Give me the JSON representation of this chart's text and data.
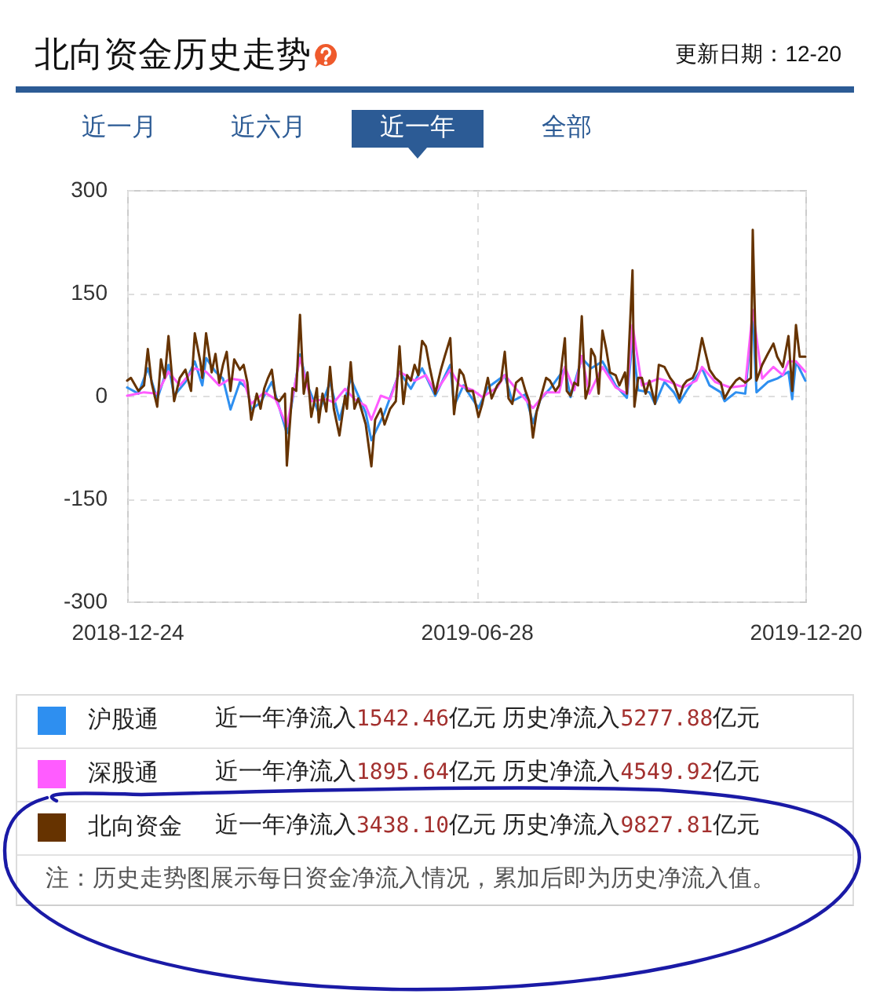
{
  "chart_data": {
    "type": "line",
    "title": "北向资金历史走势",
    "subtitle": "更新日期：12-20",
    "annotations": [
      "近一月",
      "近六月",
      "近一年",
      "全部",
      "近一年净流入1542.46亿元 历史净流入5277.88亿元",
      "近一年净流入1895.64亿元 历史净流入4549.92亿元",
      "近一年净流入3438.10亿元 历史净流入9827.81亿元",
      "注：历史走势图展示每日资金净流入情况，累加后即为历史净流入值。"
    ],
    "xlim": [
      "2018-12-24",
      "2019-12-20"
    ],
    "xticks": [
      "2018-12-24",
      "2019-06-28",
      "2019-12-20"
    ],
    "ylim": [
      -300,
      300
    ],
    "yticks": [
      300,
      150,
      0,
      -150,
      -300
    ],
    "grid": true,
    "legend": "bottom",
    "series": [
      {
        "name": "沪股通",
        "color": "#2e8ff0",
        "x": [
          "2018-12-24",
          "2018-12-30",
          "2019-01-04",
          "2019-01-09",
          "2019-01-15",
          "2019-01-18",
          "2019-01-24",
          "2019-01-29",
          "2019-02-02",
          "2019-02-04",
          "2019-02-09",
          "2019-02-13",
          "2019-02-17",
          "2019-02-22",
          "2019-02-26",
          "2019-02-28",
          "2019-03-05",
          "2019-03-11",
          "2019-03-19",
          "2019-03-26",
          "2019-03-30",
          "2019-04-05",
          "2019-04-11",
          "2019-04-16",
          "2019-04-22",
          "2019-04-30",
          "2019-05-03",
          "2019-05-10",
          "2019-05-18",
          "2019-05-24",
          "2019-05-30",
          "2019-06-06",
          "2019-06-14",
          "2019-06-16",
          "2019-06-21",
          "2019-06-29",
          "2019-07-04",
          "2019-07-13",
          "2019-07-17",
          "2019-07-24",
          "2019-07-28",
          "2019-08-01",
          "2019-08-06",
          "2019-08-14",
          "2019-08-17",
          "2019-08-23",
          "2019-08-28",
          "2019-09-03",
          "2019-09-10",
          "2019-09-16",
          "2019-09-19",
          "2019-09-22",
          "2019-09-28",
          "2019-10-01",
          "2019-10-06",
          "2019-10-11",
          "2019-10-14",
          "2019-10-18",
          "2019-10-26",
          "2019-10-30",
          "2019-11-05",
          "2019-11-07",
          "2019-11-13",
          "2019-11-18",
          "2019-11-22",
          "2019-11-24",
          "2019-11-30",
          "2019-12-05",
          "2019-12-11",
          "2019-12-13",
          "2019-12-15",
          "2019-12-20"
        ],
        "values": [
          12,
          3,
          40,
          -5,
          45,
          0,
          20,
          50,
          15,
          55,
          35,
          25,
          -20,
          20,
          10,
          -20,
          -10,
          20,
          -55,
          60,
          15,
          -25,
          20,
          -35,
          25,
          -25,
          -65,
          -25,
          35,
          10,
          40,
          0,
          45,
          -15,
          15,
          -18,
          12,
          30,
          -8,
          2,
          -40,
          -5,
          10,
          40,
          -2,
          55,
          40,
          50,
          15,
          -3,
          80,
          8,
          5,
          -12,
          20,
          5,
          -10,
          8,
          40,
          15,
          5,
          -8,
          5,
          3,
          117,
          5,
          20,
          25,
          35,
          -5,
          50,
          22
        ]
      },
      {
        "name": "深股通",
        "color": "#ff5cff",
        "x": [
          "2018-12-24",
          "2019-01-02",
          "2019-01-09",
          "2019-01-15",
          "2019-01-21",
          "2019-01-29",
          "2019-02-04",
          "2019-02-11",
          "2019-02-17",
          "2019-02-24",
          "2019-02-28",
          "2019-03-07",
          "2019-03-13",
          "2019-03-19",
          "2019-03-26",
          "2019-04-01",
          "2019-04-09",
          "2019-04-13",
          "2019-04-19",
          "2019-04-24",
          "2019-04-30",
          "2019-05-03",
          "2019-05-08",
          "2019-05-13",
          "2019-05-18",
          "2019-05-26",
          "2019-06-01",
          "2019-06-06",
          "2019-06-11",
          "2019-06-14",
          "2019-06-19",
          "2019-06-26",
          "2019-07-01",
          "2019-07-09",
          "2019-07-13",
          "2019-07-19",
          "2019-07-28",
          "2019-08-04",
          "2019-08-11",
          "2019-08-14",
          "2019-08-19",
          "2019-08-23",
          "2019-08-27",
          "2019-09-03",
          "2019-09-10",
          "2019-09-16",
          "2019-09-19",
          "2019-09-24",
          "2019-10-03",
          "2019-10-09",
          "2019-10-16",
          "2019-10-23",
          "2019-10-26",
          "2019-11-02",
          "2019-11-10",
          "2019-11-18",
          "2019-11-22",
          "2019-11-27",
          "2019-12-03",
          "2019-12-08",
          "2019-12-11",
          "2019-12-15",
          "2019-12-20"
        ],
        "values": [
          0,
          5,
          3,
          35,
          15,
          40,
          35,
          15,
          25,
          22,
          -12,
          5,
          -5,
          -45,
          55,
          -8,
          -5,
          -10,
          10,
          -5,
          -15,
          -35,
          0,
          -5,
          35,
          22,
          30,
          5,
          25,
          38,
          15,
          8,
          -2,
          12,
          30,
          10,
          -18,
          5,
          5,
          42,
          8,
          58,
          3,
          42,
          12,
          3,
          103,
          15,
          25,
          20,
          12,
          22,
          42,
          20,
          12,
          15,
          125,
          25,
          42,
          30,
          50,
          50,
          35
        ]
      },
      {
        "name": "北向资金",
        "color": "#663300",
        "x": [
          "2018-12-24",
          "2018-12-26",
          "2018-12-30",
          "2019-01-02",
          "2019-01-04",
          "2019-01-06",
          "2019-01-09",
          "2019-01-11",
          "2019-01-13",
          "2019-01-15",
          "2019-01-18",
          "2019-01-21",
          "2019-01-24",
          "2019-01-27",
          "2019-01-29",
          "2019-02-01",
          "2019-02-02",
          "2019-02-04",
          "2019-02-07",
          "2019-02-09",
          "2019-02-11",
          "2019-02-13",
          "2019-02-15",
          "2019-02-17",
          "2019-02-19",
          "2019-02-22",
          "2019-02-24",
          "2019-02-26",
          "2019-02-28",
          "2019-03-03",
          "2019-03-05",
          "2019-03-07",
          "2019-03-09",
          "2019-03-11",
          "2019-03-13",
          "2019-03-15",
          "2019-03-18",
          "2019-03-19",
          "2019-03-22",
          "2019-03-24",
          "2019-03-26",
          "2019-03-28",
          "2019-03-30",
          "2019-04-01",
          "2019-04-04",
          "2019-04-05",
          "2019-04-07",
          "2019-04-09",
          "2019-04-11",
          "2019-04-13",
          "2019-04-16",
          "2019-04-19",
          "2019-04-20",
          "2019-04-22",
          "2019-04-24",
          "2019-04-26",
          "2019-04-30",
          "2019-05-03",
          "2019-05-05",
          "2019-05-08",
          "2019-05-10",
          "2019-05-13",
          "2019-05-16",
          "2019-05-18",
          "2019-05-20",
          "2019-05-22",
          "2019-05-24",
          "2019-05-26",
          "2019-05-28",
          "2019-05-30",
          "2019-06-01",
          "2019-06-03",
          "2019-06-06",
          "2019-06-09",
          "2019-06-11",
          "2019-06-14",
          "2019-06-16",
          "2019-06-19",
          "2019-06-21",
          "2019-06-23",
          "2019-06-26",
          "2019-06-29",
          "2019-07-01",
          "2019-07-04",
          "2019-07-06",
          "2019-07-09",
          "2019-07-11",
          "2019-07-13",
          "2019-07-15",
          "2019-07-17",
          "2019-07-19",
          "2019-07-22",
          "2019-07-24",
          "2019-07-26",
          "2019-07-28",
          "2019-07-30",
          "2019-08-01",
          "2019-08-04",
          "2019-08-06",
          "2019-08-09",
          "2019-08-11",
          "2019-08-14",
          "2019-08-15",
          "2019-08-17",
          "2019-08-19",
          "2019-08-21",
          "2019-08-23",
          "2019-08-25",
          "2019-08-27",
          "2019-08-28",
          "2019-08-30",
          "2019-09-01",
          "2019-09-03",
          "2019-09-05",
          "2019-09-07",
          "2019-09-10",
          "2019-09-12",
          "2019-09-15",
          "2019-09-16",
          "2019-09-19",
          "2019-09-20",
          "2019-09-22",
          "2019-09-24",
          "2019-09-26",
          "2019-09-28",
          "2019-10-01",
          "2019-10-03",
          "2019-10-06",
          "2019-10-09",
          "2019-10-11",
          "2019-10-14",
          "2019-10-16",
          "2019-10-18",
          "2019-10-21",
          "2019-10-23",
          "2019-10-26",
          "2019-10-27",
          "2019-10-30",
          "2019-11-02",
          "2019-11-05",
          "2019-11-07",
          "2019-11-10",
          "2019-11-13",
          "2019-11-15",
          "2019-11-18",
          "2019-11-21",
          "2019-11-22",
          "2019-11-24",
          "2019-11-27",
          "2019-11-30",
          "2019-12-03",
          "2019-12-05",
          "2019-12-08",
          "2019-12-11",
          "2019-12-13",
          "2019-12-15",
          "2019-12-17",
          "2019-12-20"
        ],
        "values": [
          22,
          26,
          7,
          15,
          68,
          19,
          -16,
          53,
          26,
          87,
          -8,
          26,
          38,
          7,
          91,
          49,
          26,
          91,
          34,
          61,
          19,
          45,
          64,
          7,
          53,
          38,
          45,
          19,
          -35,
          3,
          -19,
          11,
          26,
          38,
          -4,
          -8,
          3,
          -102,
          11,
          7,
          118,
          3,
          34,
          -31,
          11,
          -39,
          3,
          -23,
          42,
          -19,
          -58,
          0,
          -19,
          49,
          -19,
          -4,
          -42,
          -103,
          -35,
          -19,
          -42,
          -19,
          -8,
          72,
          -12,
          30,
          22,
          45,
          30,
          80,
          72,
          42,
          3,
          38,
          57,
          84,
          -27,
          38,
          30,
          7,
          7,
          -31,
          -12,
          26,
          -4,
          15,
          22,
          64,
          -4,
          -12,
          19,
          26,
          7,
          -8,
          -61,
          -23,
          -4,
          26,
          22,
          7,
          15,
          84,
          7,
          0,
          19,
          15,
          116,
          -4,
          15,
          68,
          57,
          3,
          95,
          68,
          34,
          30,
          15,
          34,
          3,
          183,
          -16,
          26,
          26,
          3,
          22,
          -12,
          45,
          42,
          26,
          19,
          -4,
          15,
          22,
          26,
          38,
          84,
          72,
          38,
          26,
          19,
          -4,
          11,
          22,
          26,
          19,
          26,
          242,
          22,
          45,
          61,
          76,
          57,
          42,
          87,
          7,
          103,
          57,
          57
        ]
      }
    ]
  }
}
